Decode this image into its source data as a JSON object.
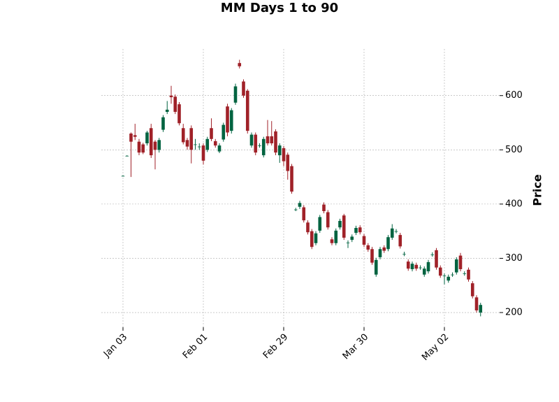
{
  "chart_data": {
    "type": "candlestick",
    "title": "MM Days 1 to 90",
    "y_label": "Price",
    "categories": [
      "Jan 03",
      null,
      null,
      null,
      null,
      null,
      null,
      null,
      null,
      null,
      null,
      null,
      null,
      null,
      null,
      null,
      null,
      null,
      null,
      null,
      "Feb 01",
      null,
      null,
      null,
      null,
      null,
      null,
      null,
      null,
      null,
      null,
      null,
      null,
      null,
      null,
      null,
      null,
      null,
      null,
      null,
      "Feb 29",
      null,
      null,
      null,
      null,
      null,
      null,
      null,
      null,
      null,
      null,
      null,
      null,
      null,
      null,
      null,
      null,
      null,
      null,
      null,
      "Mar 30",
      null,
      null,
      null,
      null,
      null,
      null,
      null,
      null,
      null,
      null,
      null,
      null,
      null,
      null,
      null,
      null,
      null,
      null,
      null,
      "May 02",
      null,
      null,
      null,
      null,
      null,
      null,
      null,
      null,
      null
    ],
    "open": [
      452,
      489,
      530,
      527,
      515,
      510,
      512,
      540,
      515,
      500,
      537,
      570,
      600,
      598,
      584,
      540,
      518,
      540,
      510,
      506,
      508,
      500,
      540,
      516,
      497,
      519,
      580,
      535,
      587,
      660,
      626,
      609,
      508,
      528,
      508,
      490,
      525,
      525,
      534,
      490,
      503,
      491,
      470,
      390,
      395,
      394,
      366,
      350,
      328,
      351,
      399,
      385,
      335,
      328,
      357,
      379,
      329,
      334,
      347,
      357,
      341,
      324,
      317,
      270,
      302,
      320,
      317,
      338,
      350,
      343,
      308,
      294,
      280,
      288,
      283,
      270,
      276,
      307,
      315,
      283,
      268,
      259,
      270,
      274,
      305,
      272,
      279,
      254,
      228,
      200
    ],
    "high": [
      453,
      490,
      532,
      548,
      520,
      513,
      535,
      548,
      518,
      522,
      564,
      590,
      618,
      602,
      588,
      548,
      522,
      545,
      520,
      512,
      512,
      524,
      558,
      520,
      512,
      550,
      585,
      577,
      622,
      666,
      630,
      612,
      532,
      532,
      512,
      524,
      555,
      553,
      538,
      512,
      507,
      495,
      474,
      393,
      406,
      398,
      370,
      354,
      350,
      380,
      403,
      389,
      339,
      355,
      373,
      382,
      333,
      344,
      360,
      361,
      345,
      328,
      321,
      301,
      321,
      324,
      343,
      363,
      354,
      347,
      312,
      298,
      294,
      292,
      287,
      285,
      297,
      311,
      319,
      287,
      272,
      270,
      274,
      302,
      310,
      276,
      283,
      258,
      232,
      218
    ],
    "low": [
      451,
      488,
      450,
      518,
      490,
      492,
      508,
      485,
      464,
      495,
      533,
      566,
      585,
      566,
      545,
      510,
      500,
      475,
      500,
      500,
      473,
      496,
      516,
      504,
      494,
      515,
      525,
      530,
      583,
      650,
      596,
      530,
      504,
      490,
      504,
      486,
      508,
      508,
      490,
      476,
      470,
      445,
      419,
      387,
      391,
      366,
      344,
      317,
      324,
      347,
      383,
      353,
      324,
      324,
      353,
      334,
      319,
      330,
      343,
      344,
      321,
      312,
      288,
      266,
      298,
      310,
      313,
      334,
      346,
      318,
      304,
      277,
      276,
      277,
      279,
      266,
      272,
      303,
      279,
      264,
      252,
      255,
      266,
      270,
      276,
      268,
      257,
      226,
      200,
      193
    ],
    "close": [
      452,
      489,
      515,
      524,
      495,
      495,
      532,
      490,
      500,
      518,
      560,
      574,
      597,
      570,
      549,
      514,
      506,
      500,
      510,
      506,
      480,
      520,
      520,
      508,
      508,
      546,
      532,
      573,
      617,
      654,
      600,
      535,
      528,
      495,
      508,
      520,
      512,
      512,
      495,
      508,
      479,
      461,
      423,
      390,
      402,
      370,
      348,
      321,
      346,
      376,
      387,
      357,
      328,
      351,
      369,
      338,
      329,
      340,
      356,
      348,
      325,
      316,
      292,
      297,
      317,
      314,
      339,
      355,
      350,
      322,
      308,
      281,
      290,
      281,
      283,
      281,
      293,
      307,
      283,
      268,
      268,
      266,
      270,
      298,
      280,
      272,
      261,
      230,
      204,
      214
    ],
    "up_color": "#006340",
    "down_color": "#a02128",
    "ylim": [
      173,
      686
    ],
    "yticks": [
      200,
      300,
      400,
      500,
      600
    ],
    "grid": true
  }
}
